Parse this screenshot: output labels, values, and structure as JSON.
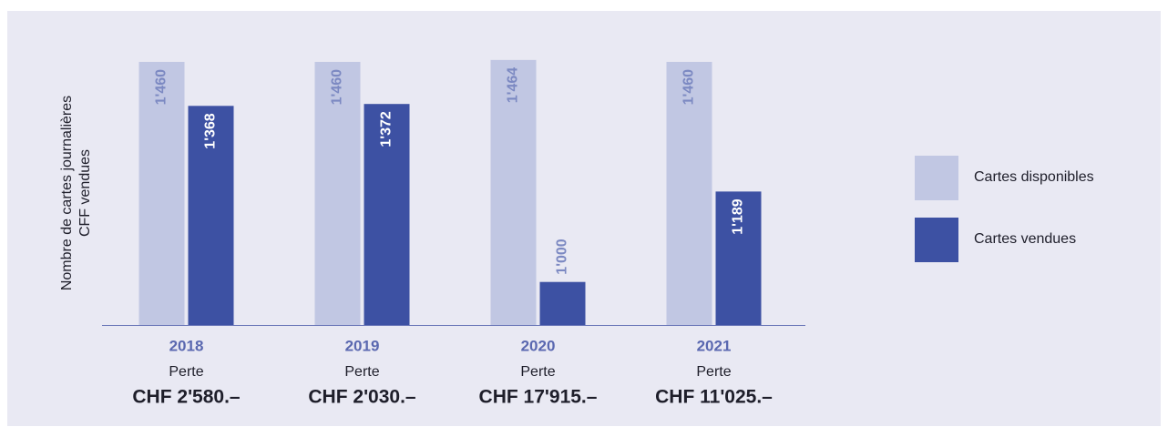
{
  "chart_data": {
    "type": "bar",
    "ylabel": [
      "Nombre de cartes journalières",
      "CFF vendues"
    ],
    "categories": [
      "2018",
      "2019",
      "2020",
      "2021"
    ],
    "series": [
      {
        "name": "Cartes disponibles",
        "color": "#c1c7e3",
        "label_color": "#7c89c2",
        "values": [
          1460,
          1460,
          1464,
          1460
        ],
        "value_labels": [
          "1'460",
          "1'460",
          "1'464",
          "1'460"
        ]
      },
      {
        "name": "Cartes vendues",
        "color": "#3d51a3",
        "label_color": "#ffffff",
        "values": [
          1368,
          1372,
          1000,
          1189
        ],
        "value_labels": [
          "1'368",
          "1'372",
          "1'000",
          "1'189"
        ]
      }
    ],
    "loss_label": "Perte",
    "losses": [
      "CHF 2'580.–",
      "CHF 2'030.–",
      "CHF 17'915.–",
      "CHF 11'025.–"
    ],
    "ylim": [
      910,
      1470
    ],
    "legend": "right"
  }
}
